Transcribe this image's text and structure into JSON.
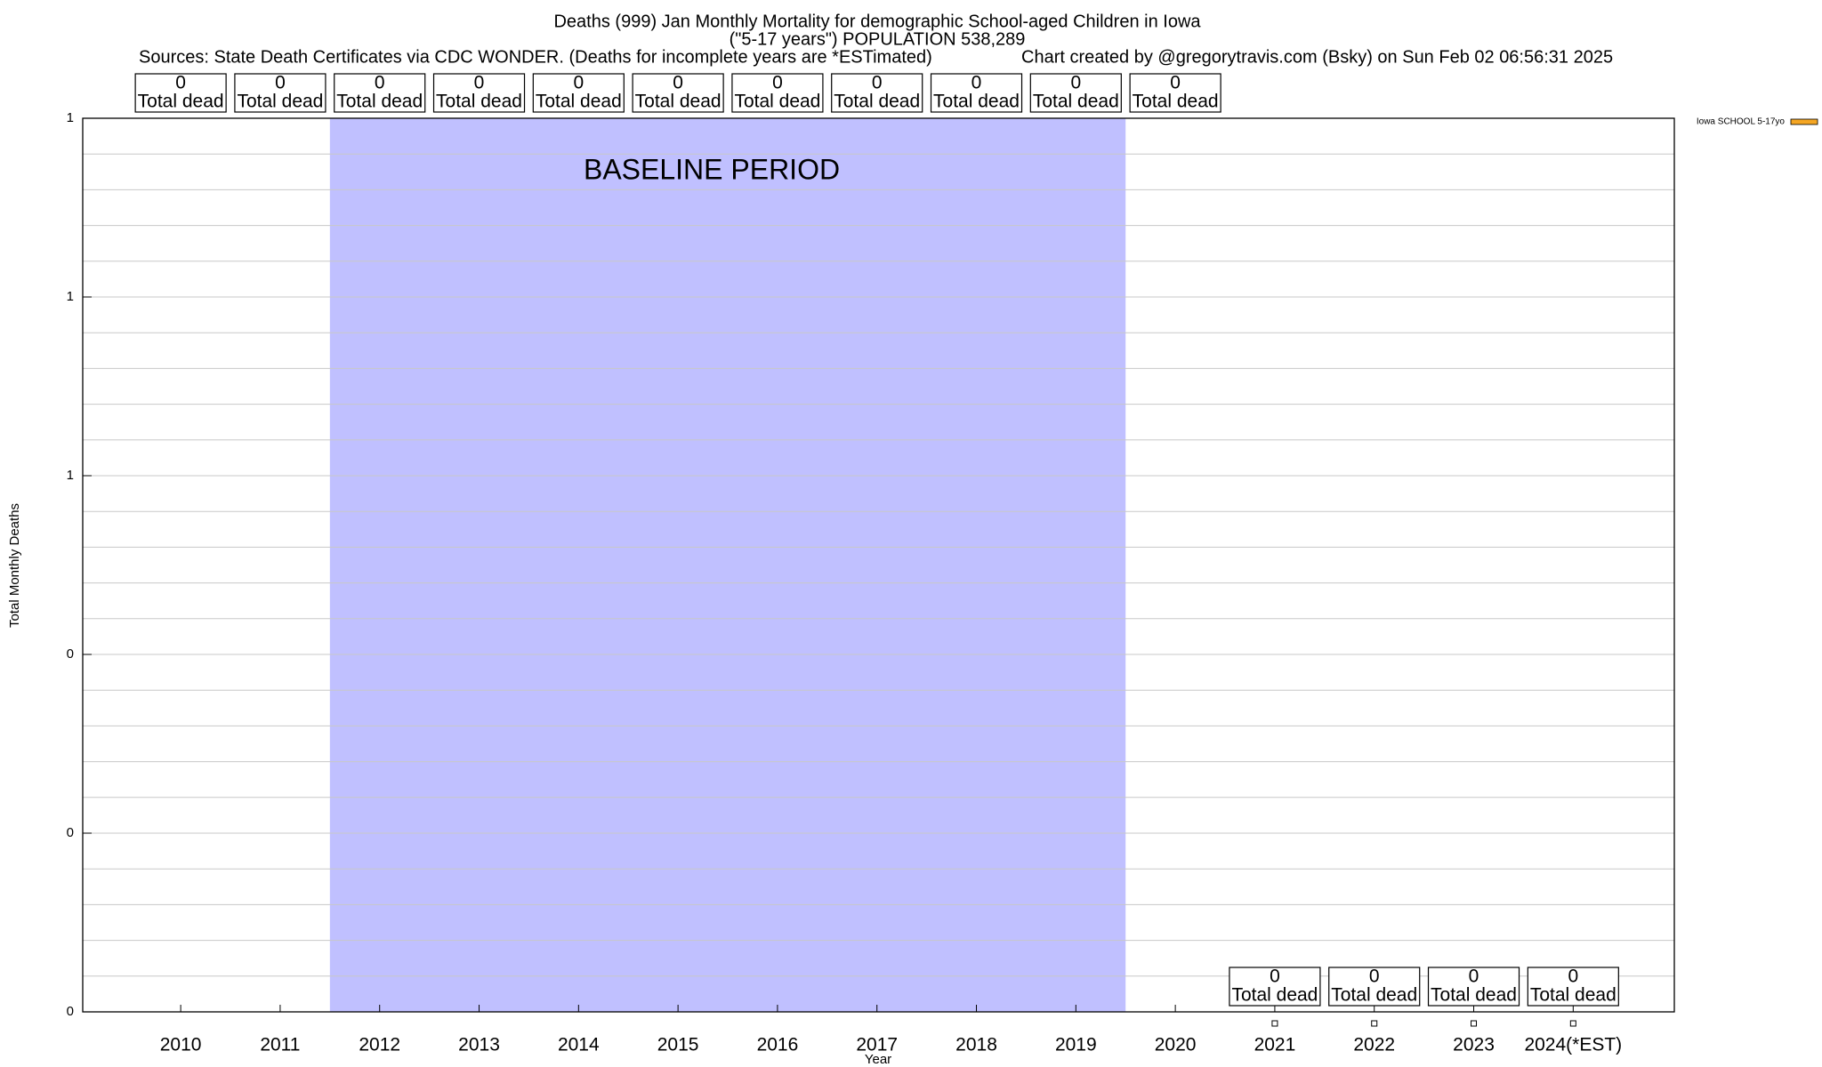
{
  "chart_data": {
    "type": "bar",
    "title": "Deaths (999) Jan Monthly Mortality for demographic School-aged Children in Iowa",
    "subtitle": "(\"5-17 years\") POPULATION 538,289",
    "sources": "Sources: State Death Certificates via CDC WONDER. (Deaths for incomplete years are *ESTimated)",
    "credit": "Chart created by @gregorytravis.com (Bsky) on Sun Feb 02 06:56:31 2025",
    "x_label": "Year",
    "y_label": "Total Monthly Deaths",
    "categories": [
      "2010",
      "2011",
      "2012",
      "2013",
      "2014",
      "2015",
      "2016",
      "2017",
      "2018",
      "2019",
      "2020",
      "2021",
      "2022",
      "2023",
      "2024(*EST)"
    ],
    "series": [
      {
        "name": "Iowa SCHOOL 5-17yo",
        "color": "#f5a623",
        "values": [
          0,
          0,
          0,
          0,
          0,
          0,
          0,
          0,
          0,
          0,
          0,
          0,
          0,
          0,
          0
        ]
      }
    ],
    "value_label_caption": "Total dead",
    "baseline": {
      "label": "BASELINE PERIOD",
      "from": "2012",
      "to": "2019",
      "color": "#c0c0ff"
    },
    "ylim": [
      0,
      1
    ],
    "yticks": [
      0,
      {
        "value": 0.2,
        "label": "0"
      },
      {
        "value": 0.4,
        "label": "0"
      },
      {
        "value": 0.6,
        "label": "1"
      },
      {
        "value": 0.8,
        "label": "1"
      },
      1
    ],
    "yminor": 5,
    "grid": true,
    "legend": "top-right"
  }
}
